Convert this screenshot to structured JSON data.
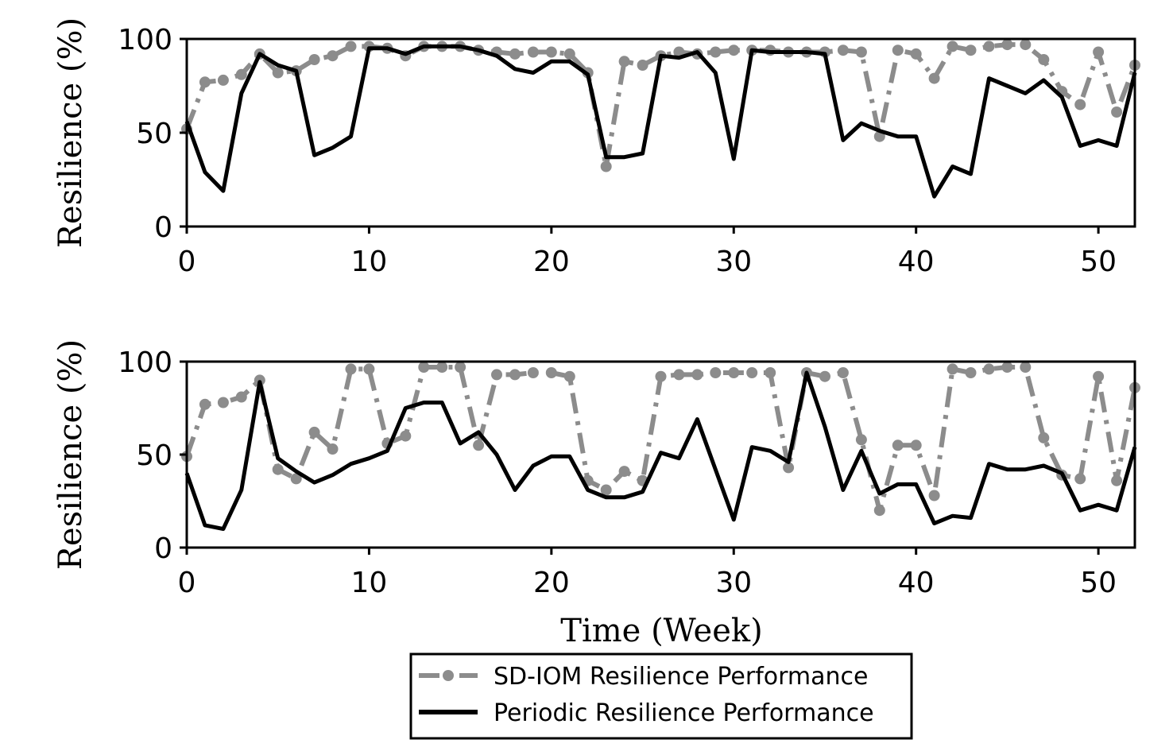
{
  "chart_data": [
    {
      "type": "line",
      "ylabel": "Resilience (%)",
      "xlabel": "",
      "xlim": [
        0,
        52
      ],
      "ylim": [
        0,
        100
      ],
      "xticks": [
        0,
        10,
        20,
        30,
        40,
        50
      ],
      "yticks": [
        0,
        50,
        100
      ],
      "grid": false,
      "series": [
        {
          "name": "SD-IOM Resilience Performance",
          "color": "#8c8c8c",
          "style": "dash-dot-with-markers",
          "x": [
            0,
            1,
            2,
            3,
            4,
            5,
            6,
            7,
            8,
            9,
            10,
            11,
            12,
            13,
            14,
            15,
            16,
            17,
            18,
            19,
            20,
            21,
            22,
            23,
            24,
            25,
            26,
            27,
            28,
            29,
            30,
            31,
            32,
            33,
            34,
            35,
            36,
            37,
            38,
            39,
            40,
            41,
            42,
            43,
            44,
            45,
            46,
            47,
            48,
            49,
            50,
            51,
            52
          ],
          "values": [
            52,
            77,
            78,
            81,
            92,
            82,
            83,
            89,
            91,
            96,
            96,
            95,
            91,
            96,
            96,
            96,
            94,
            93,
            92,
            93,
            93,
            92,
            82,
            32,
            88,
            86,
            91,
            93,
            92,
            93,
            94,
            94,
            94,
            93,
            93,
            93,
            94,
            93,
            48,
            94,
            92,
            79,
            96,
            94,
            96,
            97,
            97,
            89,
            72,
            65,
            93,
            61,
            86
          ]
        },
        {
          "name": "Periodic Resilience Performance",
          "color": "#000000",
          "style": "solid",
          "x": [
            0,
            1,
            2,
            3,
            4,
            5,
            6,
            7,
            8,
            9,
            10,
            11,
            12,
            13,
            14,
            15,
            16,
            17,
            18,
            19,
            20,
            21,
            22,
            23,
            24,
            25,
            26,
            27,
            28,
            29,
            30,
            31,
            32,
            33,
            34,
            35,
            36,
            37,
            38,
            39,
            40,
            41,
            42,
            43,
            44,
            45,
            46,
            47,
            48,
            49,
            50,
            51,
            52
          ],
          "values": [
            56,
            29,
            19,
            71,
            92,
            86,
            83,
            38,
            42,
            48,
            95,
            95,
            92,
            96,
            96,
            96,
            94,
            91,
            84,
            82,
            88,
            88,
            81,
            37,
            37,
            39,
            91,
            90,
            93,
            82,
            36,
            94,
            93,
            93,
            93,
            92,
            46,
            55,
            51,
            48,
            48,
            16,
            32,
            28,
            79,
            75,
            71,
            78,
            69,
            43,
            46,
            43,
            82
          ]
        }
      ]
    },
    {
      "type": "line",
      "ylabel": "Resilience (%)",
      "xlabel": "Time (Week)",
      "xlim": [
        0,
        52
      ],
      "ylim": [
        0,
        100
      ],
      "xticks": [
        0,
        10,
        20,
        30,
        40,
        50
      ],
      "yticks": [
        0,
        50,
        100
      ],
      "grid": false,
      "series": [
        {
          "name": "SD-IOM Resilience Performance",
          "color": "#8c8c8c",
          "style": "dash-dot-with-markers",
          "x": [
            0,
            1,
            2,
            3,
            4,
            5,
            6,
            7,
            8,
            9,
            10,
            11,
            12,
            13,
            14,
            15,
            16,
            17,
            18,
            19,
            20,
            21,
            22,
            23,
            24,
            25,
            26,
            27,
            28,
            29,
            30,
            31,
            32,
            33,
            34,
            35,
            36,
            37,
            38,
            39,
            40,
            41,
            42,
            43,
            44,
            45,
            46,
            47,
            48,
            49,
            50,
            51,
            52
          ],
          "values": [
            49,
            77,
            78,
            81,
            90,
            42,
            37,
            62,
            53,
            96,
            96,
            56,
            60,
            97,
            97,
            97,
            55,
            93,
            93,
            94,
            94,
            92,
            36,
            31,
            41,
            36,
            92,
            93,
            93,
            94,
            94,
            94,
            94,
            43,
            94,
            92,
            94,
            58,
            20,
            55,
            55,
            28,
            96,
            94,
            96,
            97,
            97,
            59,
            39,
            37,
            92,
            36,
            86
          ]
        },
        {
          "name": "Periodic Resilience Performance",
          "color": "#000000",
          "style": "solid",
          "x": [
            0,
            1,
            2,
            3,
            4,
            5,
            6,
            7,
            8,
            9,
            10,
            11,
            12,
            13,
            14,
            15,
            16,
            17,
            18,
            19,
            20,
            21,
            22,
            23,
            24,
            25,
            26,
            27,
            28,
            29,
            30,
            31,
            32,
            33,
            34,
            35,
            36,
            37,
            38,
            39,
            40,
            41,
            42,
            43,
            44,
            45,
            46,
            47,
            48,
            49,
            50,
            51,
            52
          ],
          "values": [
            40,
            12,
            10,
            31,
            89,
            48,
            41,
            35,
            39,
            45,
            48,
            52,
            75,
            78,
            78,
            56,
            62,
            50,
            31,
            44,
            49,
            49,
            31,
            27,
            27,
            30,
            51,
            48,
            69,
            42,
            15,
            54,
            52,
            46,
            94,
            65,
            31,
            52,
            29,
            34,
            34,
            13,
            17,
            16,
            45,
            42,
            42,
            44,
            40,
            20,
            23,
            20,
            54
          ]
        }
      ]
    }
  ],
  "legend": {
    "placement": "bottom-center",
    "items": [
      {
        "label": "SD-IOM Resilience Performance",
        "color": "#8c8c8c"
      },
      {
        "label": "Periodic Resilience Performance",
        "color": "#000000"
      }
    ]
  }
}
